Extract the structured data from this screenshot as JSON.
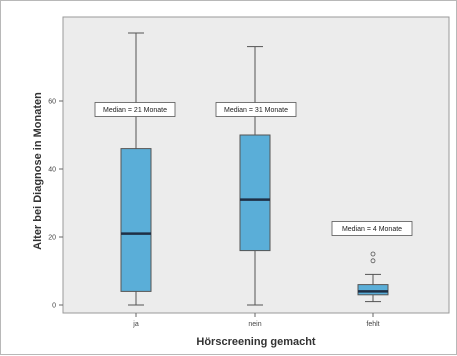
{
  "chart_data": {
    "type": "box",
    "xlabel": "Hörscreening gemacht",
    "ylabel": "Alter bei Diagnose in Monaten",
    "ylim": [
      0,
      80
    ],
    "y_ticks": [
      0,
      20,
      40,
      60
    ],
    "y_tick_labels": [
      "0",
      "20",
      "40",
      "60"
    ],
    "categories": [
      "ja",
      "nein",
      "fehlt"
    ],
    "boxes": [
      {
        "category": "ja",
        "min": 0,
        "q1": 4,
        "median": 21,
        "q3": 46,
        "max": 80,
        "outliers": []
      },
      {
        "category": "nein",
        "min": 0,
        "q1": 16,
        "median": 31,
        "q3": 50,
        "max": 76,
        "outliers": []
      },
      {
        "category": "fehlt",
        "min": 1,
        "q1": 3,
        "median": 4,
        "q3": 6,
        "max": 9,
        "outliers": [
          13,
          15
        ]
      }
    ],
    "annotations": [
      "Median = 21 Monate",
      "Median = 31 Monate",
      "Median = 4 Monate"
    ],
    "grid": false,
    "colors": {
      "box_fill": "#5aaed8",
      "plot_bg": "#ececec",
      "line": "#555555"
    }
  }
}
